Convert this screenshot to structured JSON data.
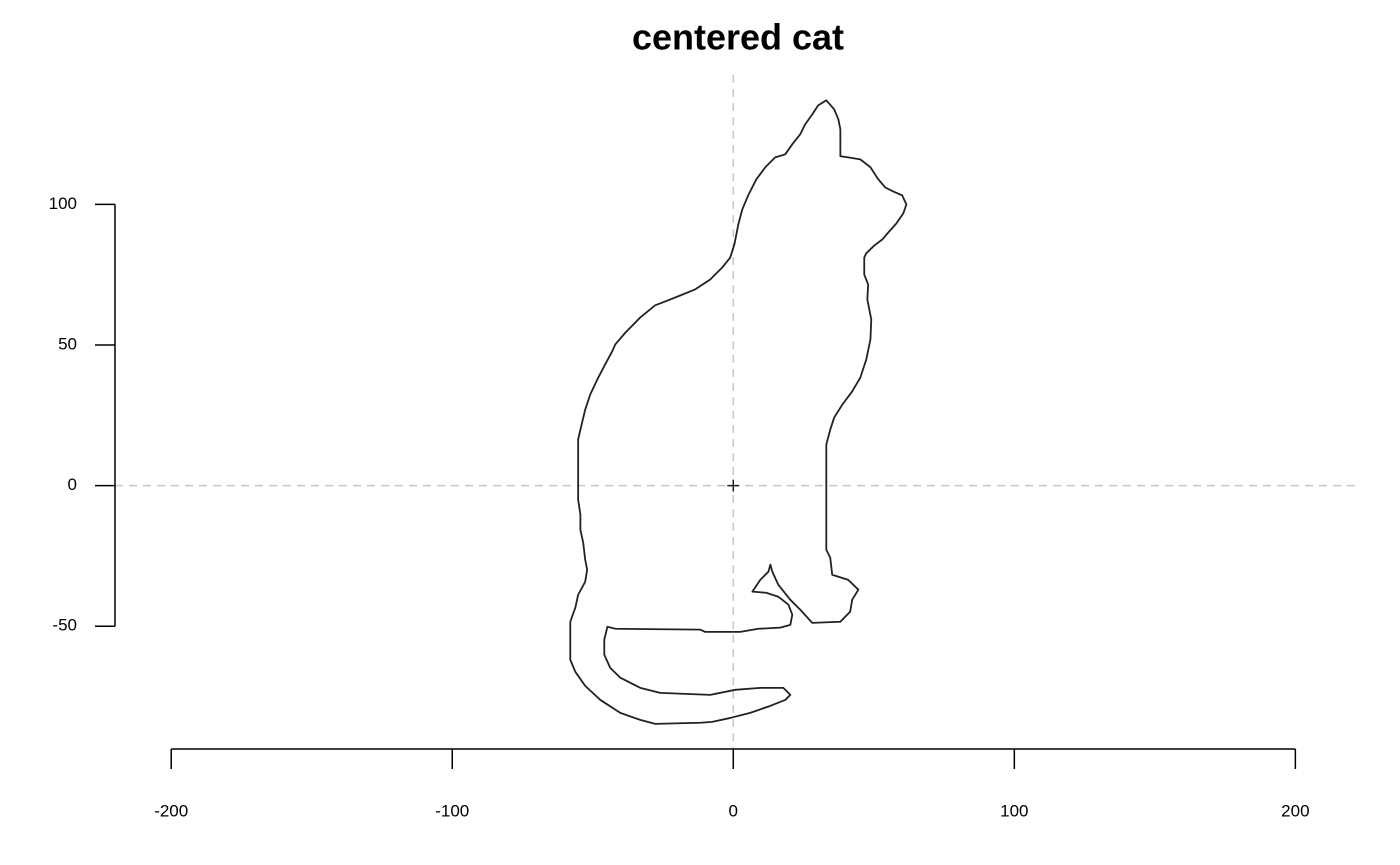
{
  "chart_data": {
    "type": "polygon",
    "title": "centered cat",
    "x": [
      33.1,
      35.9,
      37.4,
      38.1,
      38.1,
      40.9,
      45.2,
      48.8,
      51.6,
      54.1,
      56.9,
      60.1,
      61.6,
      60.5,
      58.0,
      55.5,
      53.0,
      50.2,
      47.3,
      46.6,
      46.6,
      48.0,
      47.7,
      49.1,
      48.8,
      47.3,
      45.2,
      42.3,
      38.8,
      35.9,
      34.5,
      33.1,
      33.1,
      33.1,
      34.5,
      35.2,
      40.9,
      44.5,
      42.3,
      41.6,
      38.1,
      28.1,
      23.8,
      20.3,
      16.0,
      13.9,
      13.2,
      12.5,
      9.6,
      6.8,
      11.7,
      16.0,
      19.6,
      21.0,
      20.3,
      16.7,
      8.9,
      2.5,
      -10.0,
      -11.7,
      -42.0,
      -44.8,
      -45.9,
      -45.9,
      -43.8,
      -40.2,
      -33.1,
      -26.0,
      -8.2,
      0.7,
      9.6,
      17.8,
      20.3,
      18.5,
      13.2,
      6.0,
      -1.1,
      -7.5,
      -11.7,
      -27.8,
      -33.1,
      -40.2,
      -47.3,
      -52.7,
      -56.2,
      -58.0,
      -58.0,
      -56.2,
      -55.2,
      -52.7,
      -52.0,
      -52.7,
      -53.4,
      -54.4,
      -54.4,
      -55.2,
      -55.2,
      -54.4,
      -52.7,
      -50.9,
      -48.4,
      -45.6,
      -43.1,
      -42.0,
      -38.4,
      -33.1,
      -27.8,
      -24.2,
      -18.9,
      -13.5,
      -8.2,
      -3.9,
      -1.1,
      0.4,
      1.8,
      3.2,
      5.3,
      8.2,
      11.4,
      14.9,
      18.5,
      21.0,
      23.8,
      25.6,
      28.1,
      30.2,
      33.1
    ],
    "y": [
      137.0,
      133.8,
      130.2,
      126.7,
      117.1,
      116.7,
      116.0,
      113.2,
      108.9,
      106.0,
      104.6,
      103.2,
      100.0,
      96.8,
      93.2,
      90.4,
      87.5,
      85.4,
      82.6,
      81.1,
      75.1,
      71.5,
      66.2,
      59.1,
      52.0,
      44.8,
      38.4,
      33.5,
      28.8,
      24.2,
      19.9,
      14.6,
      9.3,
      -22.8,
      -25.6,
      -31.7,
      -33.5,
      -37.0,
      -40.6,
      -44.8,
      -48.4,
      -48.8,
      -44.1,
      -40.6,
      -35.2,
      -30.6,
      -28.1,
      -30.6,
      -33.5,
      -37.7,
      -38.1,
      -39.5,
      -42.3,
      -45.9,
      -49.5,
      -50.5,
      -50.9,
      -52.0,
      -52.0,
      -51.2,
      -50.9,
      -50.2,
      -54.8,
      -60.1,
      -64.8,
      -68.3,
      -71.9,
      -73.7,
      -74.4,
      -72.6,
      -71.9,
      -71.9,
      -74.4,
      -76.2,
      -78.3,
      -80.8,
      -82.6,
      -84.0,
      -84.3,
      -84.7,
      -83.3,
      -80.8,
      -76.2,
      -71.2,
      -66.2,
      -61.9,
      -48.4,
      -43.4,
      -38.8,
      -34.2,
      -29.9,
      -26.3,
      -20.3,
      -15.7,
      -10.3,
      -5.0,
      16.4,
      19.9,
      27.0,
      32.4,
      37.7,
      43.1,
      47.7,
      50.2,
      54.4,
      59.8,
      64.1,
      65.5,
      67.6,
      69.8,
      73.3,
      77.6,
      81.1,
      85.8,
      92.9,
      98.2,
      103.2,
      108.9,
      113.2,
      116.7,
      117.8,
      121.4,
      124.9,
      128.5,
      132.0,
      135.2,
      137.0
    ],
    "color": "#222222",
    "points": {
      "x": [
        0
      ],
      "y": [
        0
      ]
    },
    "ablines": {
      "h": 0,
      "v": 0,
      "color": "#c8c8c8"
    },
    "xlim": [
      -220,
      223
    ],
    "ylim": [
      -94,
      146
    ],
    "xticks": [
      -200,
      -100,
      0,
      100,
      200
    ],
    "yticks": [
      -50,
      0,
      50,
      100
    ]
  }
}
